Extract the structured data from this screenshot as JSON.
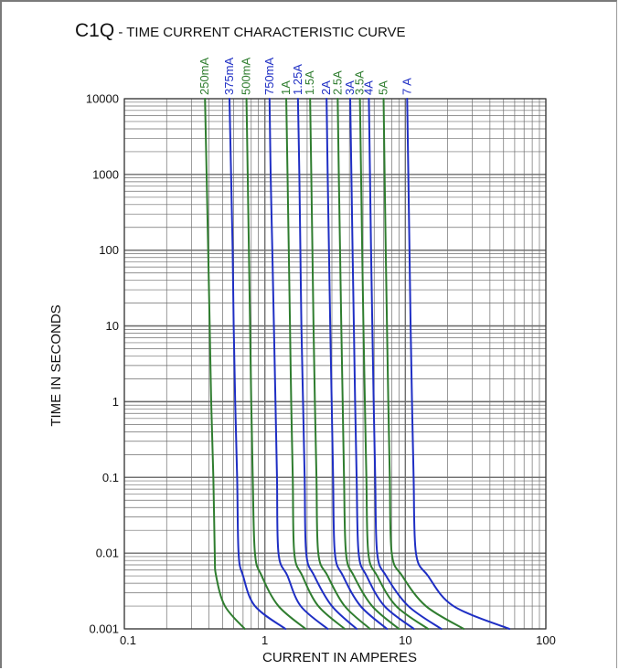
{
  "chart_data": {
    "type": "line",
    "title": {
      "prefix": "C1Q",
      "rest": " - TIME CURRENT CHARACTERISTIC CURVE"
    },
    "xlabel": "CURRENT IN AMPERES",
    "ylabel": "TIME IN SECONDS",
    "x_scale": "log",
    "y_scale": "log",
    "xlim": [
      0.1,
      100
    ],
    "ylim": [
      0.001,
      10000
    ],
    "x_ticks": [
      {
        "v": 0.1,
        "label": "0.1"
      },
      {
        "v": 1,
        "label": "1"
      },
      {
        "v": 10,
        "label": "10"
      },
      {
        "v": 100,
        "label": "100"
      }
    ],
    "y_ticks": [
      {
        "v": 10000,
        "label": "10000"
      },
      {
        "v": 1000,
        "label": "1000"
      },
      {
        "v": 100,
        "label": "100"
      },
      {
        "v": 10,
        "label": "10"
      },
      {
        "v": 1,
        "label": "1"
      },
      {
        "v": 0.1,
        "label": "0.1"
      },
      {
        "v": 0.01,
        "label": "0.01"
      },
      {
        "v": 0.001,
        "label": "0.001"
      }
    ],
    "grid": true,
    "colors": {
      "green": "#2f7d2f",
      "blue": "#1f2fc4",
      "grid": "#6e6e6e"
    },
    "series": [
      {
        "name": "250mA",
        "color": "#2f7d2f",
        "points": [
          [
            0.375,
            10000
          ],
          [
            0.385,
            1000
          ],
          [
            0.395,
            100
          ],
          [
            0.405,
            10
          ],
          [
            0.415,
            1
          ],
          [
            0.43,
            0.1
          ],
          [
            0.44,
            0.01
          ],
          [
            0.45,
            0.005
          ],
          [
            0.52,
            0.002
          ],
          [
            0.72,
            0.001
          ]
        ]
      },
      {
        "name": "375mA",
        "color": "#1f2fc4",
        "points": [
          [
            0.56,
            10000
          ],
          [
            0.575,
            1000
          ],
          [
            0.59,
            100
          ],
          [
            0.6,
            10
          ],
          [
            0.615,
            1
          ],
          [
            0.635,
            0.1
          ],
          [
            0.65,
            0.01
          ],
          [
            0.7,
            0.005
          ],
          [
            0.85,
            0.002
          ],
          [
            1.4,
            0.001
          ]
        ]
      },
      {
        "name": "500mA",
        "color": "#2f7d2f",
        "points": [
          [
            0.74,
            10000
          ],
          [
            0.755,
            1000
          ],
          [
            0.77,
            100
          ],
          [
            0.785,
            10
          ],
          [
            0.8,
            1
          ],
          [
            0.82,
            0.1
          ],
          [
            0.85,
            0.01
          ],
          [
            0.95,
            0.005
          ],
          [
            1.25,
            0.002
          ],
          [
            1.95,
            0.001
          ]
        ]
      },
      {
        "name": "750mA",
        "color": "#1f2fc4",
        "points": [
          [
            1.08,
            10000
          ],
          [
            1.1,
            1000
          ],
          [
            1.13,
            100
          ],
          [
            1.16,
            10
          ],
          [
            1.19,
            1
          ],
          [
            1.22,
            0.1
          ],
          [
            1.25,
            0.01
          ],
          [
            1.45,
            0.005
          ],
          [
            1.8,
            0.002
          ],
          [
            2.8,
            0.001
          ]
        ]
      },
      {
        "name": "1A",
        "color": "#2f7d2f",
        "points": [
          [
            1.42,
            10000
          ],
          [
            1.45,
            1000
          ],
          [
            1.48,
            100
          ],
          [
            1.51,
            10
          ],
          [
            1.54,
            1
          ],
          [
            1.58,
            0.1
          ],
          [
            1.62,
            0.01
          ],
          [
            1.85,
            0.005
          ],
          [
            2.4,
            0.002
          ],
          [
            3.7,
            0.001
          ]
        ]
      },
      {
        "name": "1.25A",
        "color": "#1f2fc4",
        "points": [
          [
            1.72,
            10000
          ],
          [
            1.76,
            1000
          ],
          [
            1.79,
            100
          ],
          [
            1.82,
            10
          ],
          [
            1.87,
            1
          ],
          [
            1.92,
            0.1
          ],
          [
            1.97,
            0.01
          ],
          [
            2.25,
            0.005
          ],
          [
            3.0,
            0.002
          ],
          [
            4.5,
            0.001
          ]
        ]
      },
      {
        "name": "1.5A",
        "color": "#2f7d2f",
        "points": [
          [
            2.1,
            10000
          ],
          [
            2.14,
            1000
          ],
          [
            2.18,
            100
          ],
          [
            2.22,
            10
          ],
          [
            2.27,
            1
          ],
          [
            2.33,
            0.1
          ],
          [
            2.4,
            0.01
          ],
          [
            2.8,
            0.005
          ],
          [
            3.7,
            0.002
          ],
          [
            5.6,
            0.001
          ]
        ]
      },
      {
        "name": "2A",
        "color": "#1f2fc4",
        "points": [
          [
            2.75,
            10000
          ],
          [
            2.8,
            1000
          ],
          [
            2.86,
            100
          ],
          [
            2.92,
            10
          ],
          [
            2.99,
            1
          ],
          [
            3.06,
            0.1
          ],
          [
            3.15,
            0.01
          ],
          [
            3.6,
            0.005
          ],
          [
            4.8,
            0.002
          ],
          [
            7.4,
            0.001
          ]
        ]
      },
      {
        "name": "2.5A",
        "color": "#2f7d2f",
        "points": [
          [
            3.3,
            10000
          ],
          [
            3.36,
            1000
          ],
          [
            3.43,
            100
          ],
          [
            3.5,
            10
          ],
          [
            3.58,
            1
          ],
          [
            3.66,
            0.1
          ],
          [
            3.78,
            0.01
          ],
          [
            4.3,
            0.005
          ],
          [
            5.8,
            0.002
          ],
          [
            9.0,
            0.001
          ]
        ]
      },
      {
        "name": "3A",
        "color": "#1f2fc4",
        "points": [
          [
            4.05,
            10000
          ],
          [
            4.13,
            1000
          ],
          [
            4.21,
            100
          ],
          [
            4.3,
            10
          ],
          [
            4.39,
            1
          ],
          [
            4.5,
            0.1
          ],
          [
            4.65,
            0.01
          ],
          [
            5.3,
            0.005
          ],
          [
            7.1,
            0.002
          ],
          [
            11.5,
            0.001
          ]
        ]
      },
      {
        "name": "3.5A",
        "color": "#2f7d2f",
        "points": [
          [
            4.75,
            10000
          ],
          [
            4.84,
            1000
          ],
          [
            4.93,
            100
          ],
          [
            5.03,
            10
          ],
          [
            5.15,
            1
          ],
          [
            5.28,
            0.1
          ],
          [
            5.45,
            0.01
          ],
          [
            6.3,
            0.005
          ],
          [
            8.6,
            0.002
          ],
          [
            14.5,
            0.001
          ]
        ]
      },
      {
        "name": "4A",
        "color": "#1f2fc4",
        "points": [
          [
            5.5,
            10000
          ],
          [
            5.6,
            1000
          ],
          [
            5.7,
            100
          ],
          [
            5.82,
            10
          ],
          [
            5.95,
            1
          ],
          [
            6.1,
            0.1
          ],
          [
            6.3,
            0.01
          ],
          [
            7.3,
            0.005
          ],
          [
            10.5,
            0.002
          ],
          [
            18.0,
            0.001
          ]
        ]
      },
      {
        "name": "5A",
        "color": "#2f7d2f",
        "points": [
          [
            7.0,
            10000
          ],
          [
            7.12,
            1000
          ],
          [
            7.25,
            100
          ],
          [
            7.4,
            10
          ],
          [
            7.56,
            1
          ],
          [
            7.75,
            0.1
          ],
          [
            8.0,
            0.01
          ],
          [
            9.5,
            0.005
          ],
          [
            14.0,
            0.002
          ],
          [
            26.0,
            0.001
          ]
        ]
      },
      {
        "name": "7 A",
        "color": "#1f2fc4",
        "points": [
          [
            10.3,
            10000
          ],
          [
            10.5,
            1000
          ],
          [
            10.7,
            100
          ],
          [
            10.9,
            10
          ],
          [
            11.15,
            1
          ],
          [
            11.45,
            0.1
          ],
          [
            11.9,
            0.01
          ],
          [
            14.5,
            0.005
          ],
          [
            22.0,
            0.002
          ],
          [
            55.0,
            0.001
          ]
        ]
      }
    ]
  }
}
